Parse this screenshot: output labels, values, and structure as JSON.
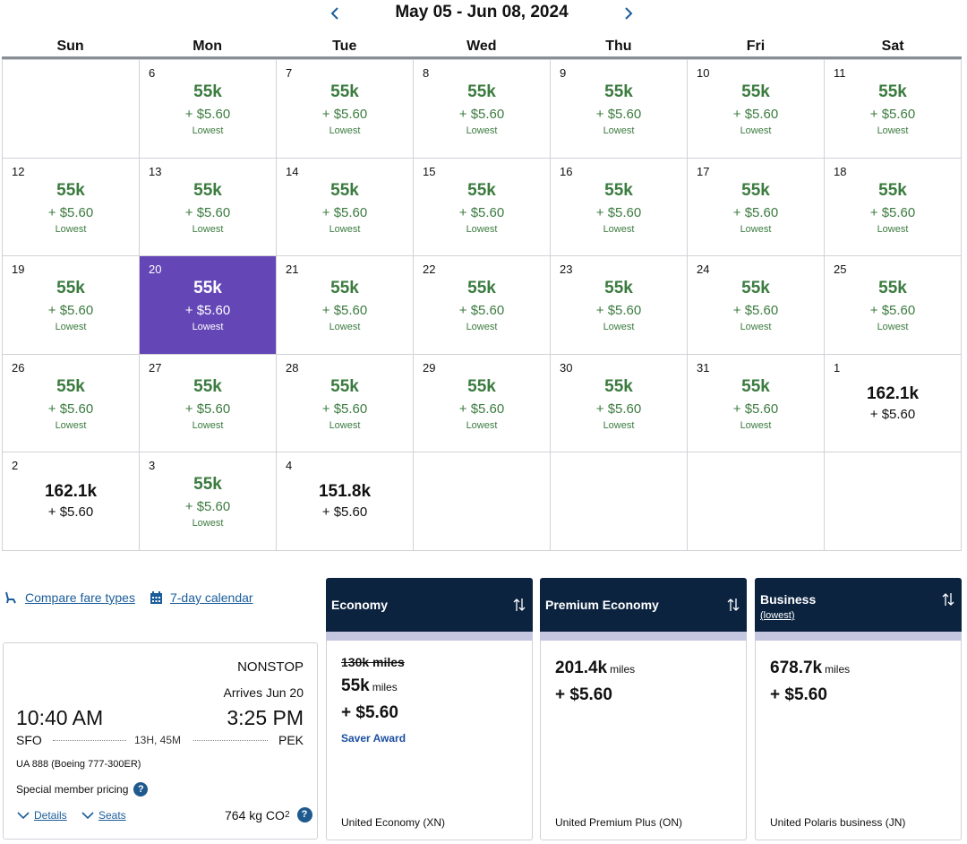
{
  "calendar": {
    "range_title": "May 05 - Jun 08, 2024",
    "weekdays": [
      "Sun",
      "Mon",
      "Tue",
      "Wed",
      "Thu",
      "Fri",
      "Sat"
    ],
    "weeks": [
      [
        {
          "day": "",
          "miles": "",
          "fee": "",
          "tag": ""
        },
        {
          "day": "6",
          "miles": "55k",
          "fee": "+ $5.60",
          "tag": "Lowest"
        },
        {
          "day": "7",
          "miles": "55k",
          "fee": "+ $5.60",
          "tag": "Lowest"
        },
        {
          "day": "8",
          "miles": "55k",
          "fee": "+ $5.60",
          "tag": "Lowest"
        },
        {
          "day": "9",
          "miles": "55k",
          "fee": "+ $5.60",
          "tag": "Lowest"
        },
        {
          "day": "10",
          "miles": "55k",
          "fee": "+ $5.60",
          "tag": "Lowest"
        },
        {
          "day": "11",
          "miles": "55k",
          "fee": "+ $5.60",
          "tag": "Lowest"
        }
      ],
      [
        {
          "day": "12",
          "miles": "55k",
          "fee": "+ $5.60",
          "tag": "Lowest"
        },
        {
          "day": "13",
          "miles": "55k",
          "fee": "+ $5.60",
          "tag": "Lowest"
        },
        {
          "day": "14",
          "miles": "55k",
          "fee": "+ $5.60",
          "tag": "Lowest"
        },
        {
          "day": "15",
          "miles": "55k",
          "fee": "+ $5.60",
          "tag": "Lowest"
        },
        {
          "day": "16",
          "miles": "55k",
          "fee": "+ $5.60",
          "tag": "Lowest"
        },
        {
          "day": "17",
          "miles": "55k",
          "fee": "+ $5.60",
          "tag": "Lowest"
        },
        {
          "day": "18",
          "miles": "55k",
          "fee": "+ $5.60",
          "tag": "Lowest"
        }
      ],
      [
        {
          "day": "19",
          "miles": "55k",
          "fee": "+ $5.60",
          "tag": "Lowest"
        },
        {
          "day": "20",
          "miles": "55k",
          "fee": "+ $5.60",
          "tag": "Lowest",
          "selected": true
        },
        {
          "day": "21",
          "miles": "55k",
          "fee": "+ $5.60",
          "tag": "Lowest"
        },
        {
          "day": "22",
          "miles": "55k",
          "fee": "+ $5.60",
          "tag": "Lowest"
        },
        {
          "day": "23",
          "miles": "55k",
          "fee": "+ $5.60",
          "tag": "Lowest"
        },
        {
          "day": "24",
          "miles": "55k",
          "fee": "+ $5.60",
          "tag": "Lowest"
        },
        {
          "day": "25",
          "miles": "55k",
          "fee": "+ $5.60",
          "tag": "Lowest"
        }
      ],
      [
        {
          "day": "26",
          "miles": "55k",
          "fee": "+ $5.60",
          "tag": "Lowest"
        },
        {
          "day": "27",
          "miles": "55k",
          "fee": "+ $5.60",
          "tag": "Lowest"
        },
        {
          "day": "28",
          "miles": "55k",
          "fee": "+ $5.60",
          "tag": "Lowest"
        },
        {
          "day": "29",
          "miles": "55k",
          "fee": "+ $5.60",
          "tag": "Lowest"
        },
        {
          "day": "30",
          "miles": "55k",
          "fee": "+ $5.60",
          "tag": "Lowest"
        },
        {
          "day": "31",
          "miles": "55k",
          "fee": "+ $5.60",
          "tag": "Lowest"
        },
        {
          "day": "1",
          "miles": "162.1k",
          "fee": "+ $5.60",
          "tag": ""
        }
      ],
      [
        {
          "day": "2",
          "miles": "162.1k",
          "fee": "+ $5.60",
          "tag": ""
        },
        {
          "day": "3",
          "miles": "55k",
          "fee": "+ $5.60",
          "tag": "Lowest"
        },
        {
          "day": "4",
          "miles": "151.8k",
          "fee": "+ $5.60",
          "tag": ""
        },
        {
          "day": "",
          "miles": "",
          "fee": "",
          "tag": ""
        },
        {
          "day": "",
          "miles": "",
          "fee": "",
          "tag": ""
        },
        {
          "day": "",
          "miles": "",
          "fee": "",
          "tag": ""
        },
        {
          "day": "",
          "miles": "",
          "fee": "",
          "tag": ""
        }
      ]
    ]
  },
  "links": {
    "compare_fare_types": "Compare fare types",
    "seven_day_calendar": "7-day calendar"
  },
  "flight": {
    "stops": "NONSTOP",
    "arrives": "Arrives Jun 20",
    "depart_time": "10:40 AM",
    "arrive_time": "3:25 PM",
    "origin": "SFO",
    "destination": "PEK",
    "duration": "13H, 45M",
    "equipment": "UA 888 (Boeing 777-300ER)",
    "pricing_note": "Special member pricing",
    "details_label": "Details",
    "seats_label": "Seats",
    "co2_value": "764 kg CO",
    "co2_sub": "2"
  },
  "fares": {
    "economy": {
      "title": "Economy",
      "original_miles": "130k miles",
      "miles": "55k",
      "miles_unit": "miles",
      "fee": "+ $5.60",
      "badge": "Saver Award",
      "product": "United Economy (XN)"
    },
    "premium": {
      "title": "Premium Economy",
      "miles": "201.4k",
      "miles_unit": "miles",
      "fee": "+ $5.60",
      "product": "United Premium Plus (ON)"
    },
    "business": {
      "title": "Business",
      "subtitle": "(lowest)",
      "miles": "678.7k",
      "miles_unit": "miles",
      "fee": "+ $5.60",
      "product": "United Polaris business (JN)"
    }
  },
  "colors": {
    "green": "#3b7b3f",
    "selected": "#6446b6",
    "navy": "#0c2340",
    "link": "#1b5d9a"
  }
}
